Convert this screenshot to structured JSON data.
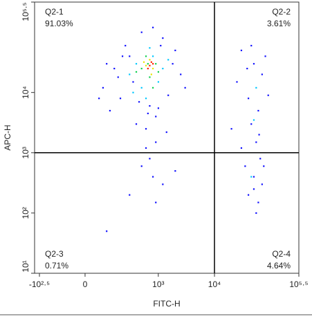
{
  "chart_data": {
    "type": "scatter",
    "x_label": "FITC-H",
    "y_label": "APC-H",
    "xscale": "asinh",
    "yscale": "log",
    "xlim": [
      -316,
      316228
    ],
    "ylim": [
      10,
      316228
    ],
    "xticks": [
      {
        "value": -316,
        "label": "-10²·⁵"
      },
      0,
      {
        "value": 1000,
        "label": "10³"
      },
      {
        "value": 10000,
        "label": "10⁴"
      },
      {
        "value": 316228,
        "label": "10⁵·⁵"
      }
    ],
    "yticks": [
      {
        "value": 10,
        "label": "10¹"
      },
      {
        "value": 100,
        "label": "10²"
      },
      {
        "value": 1000,
        "label": "10³"
      },
      {
        "value": 10000,
        "label": "10⁴"
      },
      {
        "value": 316228,
        "label": "10⁵·⁵"
      }
    ],
    "gates": {
      "x": 10000,
      "y": 1000
    },
    "quadrants": {
      "labels": [
        "Q2-1",
        "Q2-2",
        "Q2-3",
        "Q2-4"
      ],
      "values": [
        91.03,
        3.61,
        0.71,
        4.64
      ],
      "value_labels": [
        "91.03%",
        "3.61%",
        "0.71%",
        "4.64%"
      ]
    },
    "series": [
      {
        "color": "#1010ff",
        "x": [
          80,
          150,
          200,
          300,
          120,
          400,
          600,
          900,
          1500,
          2500,
          2000,
          1200,
          500,
          250,
          100,
          700,
          350,
          1800,
          900,
          600,
          450,
          3000,
          180,
          800,
          1000,
          60,
          1400,
          220,
          650,
          1100,
          500,
          800,
          1200,
          300,
          900,
          2000,
          700,
          100,
          30000,
          50000,
          70000,
          40000,
          60000,
          25000,
          80000,
          45000,
          55000,
          65000,
          35000,
          50000,
          70000,
          40000,
          60000,
          55000,
          30000,
          75000,
          45000,
          90000,
          20000,
          50000,
          62000,
          38000
        ],
        "y": [
          12000,
          25000,
          8000,
          40000,
          5000,
          3000,
          2500,
          4000,
          9000,
          20000,
          50000,
          80000,
          100000,
          60000,
          30000,
          6000,
          15000,
          30000,
          1500,
          1200,
          7000,
          12000,
          18000,
          120000,
          5500,
          8000,
          2200,
          40000,
          4500,
          60000,
          600,
          400,
          300,
          200,
          150,
          500,
          800,
          50,
          50000,
          30000,
          20000,
          8000,
          5000,
          15000,
          40000,
          3000,
          1500,
          800,
          600,
          400,
          300,
          200,
          150,
          100,
          1200,
          600,
          60000,
          9000,
          2500,
          250,
          2000,
          25000
        ]
      },
      {
        "color": "#00c8ff",
        "x": [
          300,
          500,
          800,
          1200,
          400,
          600,
          1000,
          700,
          350,
          1500,
          55000,
          45000,
          50000
        ],
        "y": [
          20000,
          12000,
          40000,
          25000,
          30000,
          8000,
          15000,
          55000,
          10000,
          35000,
          12000,
          400,
          3500
        ]
      },
      {
        "color": "#10d050",
        "x": [
          500,
          700,
          900,
          600,
          400,
          1000,
          800,
          650
        ],
        "y": [
          25000,
          18000,
          30000,
          40000,
          22000,
          22000,
          12000,
          30000
        ]
      },
      {
        "color": "#e8e800",
        "x": [
          600,
          800,
          700,
          750,
          550
        ],
        "y": [
          28000,
          25000,
          35000,
          20000,
          32000
        ]
      },
      {
        "color": "#ff2000",
        "x": [
          700,
          800,
          650,
          750
        ],
        "y": [
          28000,
          30000,
          25000,
          32000
        ]
      }
    ]
  }
}
